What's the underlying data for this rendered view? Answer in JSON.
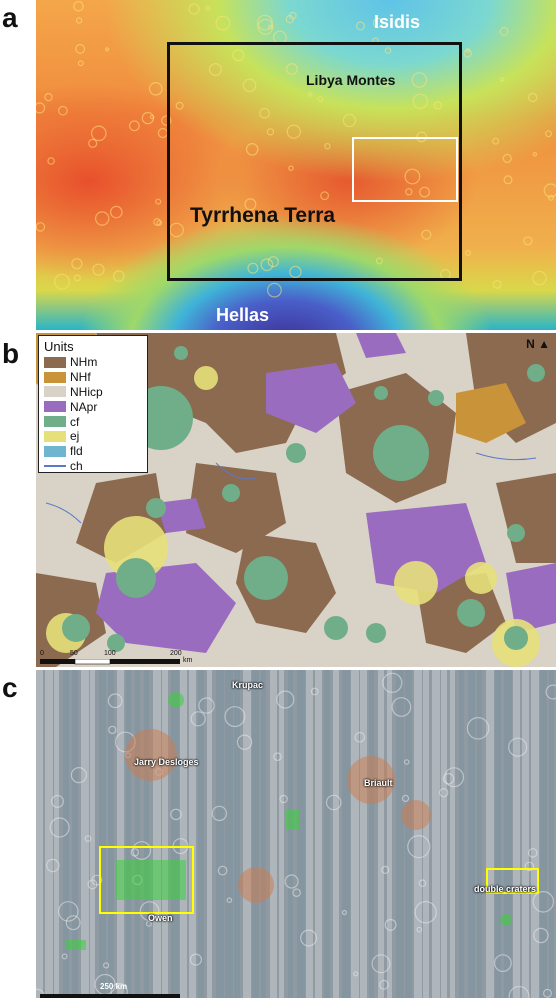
{
  "panels": {
    "a": {
      "letter": "a",
      "labels": {
        "isidis": "Isidis",
        "libya_montes": "Libya Montes",
        "tyrrhena_terra": "Tyrrhena Terra",
        "hellas": "Hellas"
      }
    },
    "b": {
      "letter": "b",
      "legend": {
        "title": "Units",
        "items": [
          {
            "label": "NHm",
            "color": "#8b6a4f"
          },
          {
            "label": "NHf",
            "color": "#c9933a"
          },
          {
            "label": "NHicp",
            "color": "#d9d2c6"
          },
          {
            "label": "NApr",
            "color": "#9a6cc0"
          },
          {
            "label": "cf",
            "color": "#6fae88"
          },
          {
            "label": "ej",
            "color": "#e6e07a"
          },
          {
            "label": "fld",
            "color": "#6fb5cf"
          },
          {
            "label": "ch",
            "color": "#5a79c8"
          }
        ]
      },
      "scale_ticks": [
        "0",
        "50",
        "100",
        "200"
      ],
      "scale_unit": "km",
      "north": "N"
    },
    "c": {
      "letter": "c",
      "labels": {
        "krupac": "Krupac",
        "jarry_desloges": "Jarry Desloges",
        "briault": "Briault",
        "owen": "Owen",
        "double_craters": "double craters"
      },
      "scale": "250 km"
    }
  },
  "colors": {
    "black_box": "#111111",
    "white_box": "#ffffff",
    "yellow_box": "#ffff00"
  }
}
